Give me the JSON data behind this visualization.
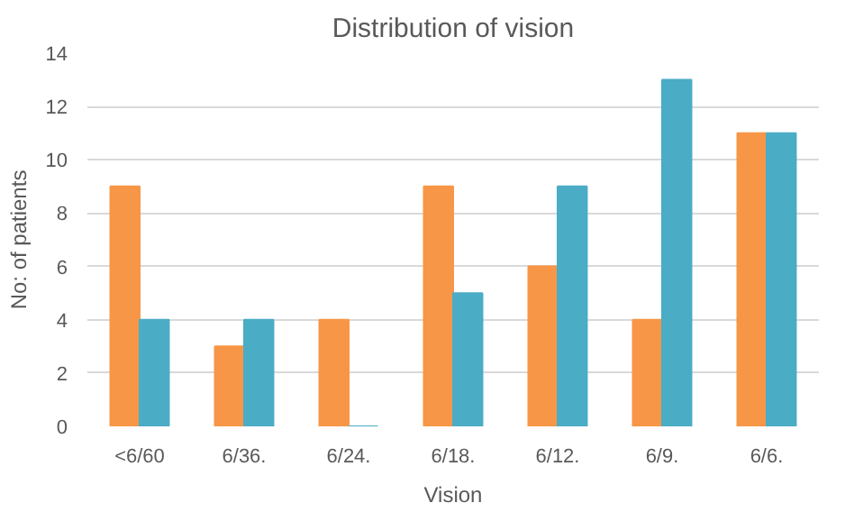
{
  "chart_data": {
    "type": "bar",
    "title": "Distribution of vision",
    "xlabel": "Vision",
    "ylabel": "No: of patients",
    "categories": [
      "<6/60",
      "6/36.",
      "6/24.",
      "6/18.",
      "6/12.",
      "6/9.",
      "6/6."
    ],
    "series": [
      {
        "color": "#f79646",
        "values": [
          9,
          3,
          4,
          9,
          6,
          4,
          11
        ]
      },
      {
        "color": "#4bacc6",
        "values": [
          4,
          4,
          0,
          5,
          9,
          13,
          11
        ]
      }
    ],
    "ylim": [
      0,
      14
    ],
    "yticks": [
      0,
      2,
      4,
      6,
      8,
      10,
      12,
      14
    ],
    "grid": "y"
  }
}
